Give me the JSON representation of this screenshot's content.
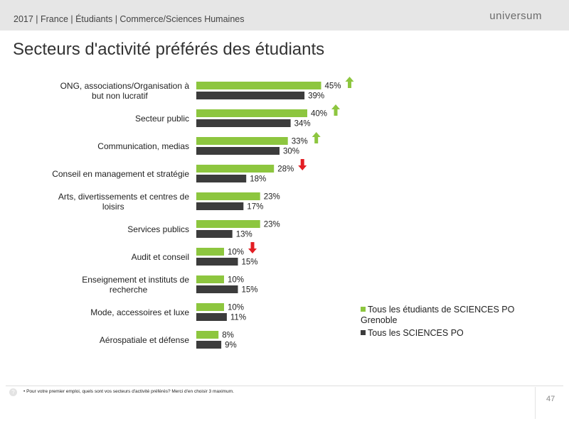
{
  "header": {
    "breadcrumb": "2017 | France | Étudiants | Commerce/Sciences Humaines",
    "brand": "universum"
  },
  "title": "Secteurs d'activité préférés des étudiants",
  "chart_data": {
    "type": "bar",
    "orientation": "horizontal",
    "title": "Secteurs d'activité préférés des étudiants",
    "categories": [
      "ONG, associations/Organisation à but non lucratif",
      "Secteur public",
      "Communication, medias",
      "Conseil en management et stratégie",
      "Arts, divertissements et centres de loisirs",
      "Services publics",
      "Audit et conseil",
      "Enseignement et instituts de recherche",
      "Mode, accessoires et luxe",
      "Aérospatiale et défense"
    ],
    "category_lines": [
      [
        "ONG, associations/Organisation à",
        "but non lucratif"
      ],
      [
        "Secteur public"
      ],
      [
        "Communication, medias"
      ],
      [
        "Conseil en management et stratégie"
      ],
      [
        "Arts, divertissements et centres de",
        "loisirs"
      ],
      [
        "Services publics"
      ],
      [
        "Audit et conseil"
      ],
      [
        "Enseignement et instituts de",
        "recherche"
      ],
      [
        "Mode, accessoires et luxe"
      ],
      [
        "Aérospatiale et défense"
      ]
    ],
    "series": [
      {
        "name": "Tous les étudiants de SCIENCES PO Grenoble",
        "color": "#8dc63f",
        "values": [
          45,
          40,
          33,
          28,
          23,
          23,
          10,
          10,
          10,
          8
        ]
      },
      {
        "name": "Tous les SCIENCES PO",
        "color": "#3c3c3c",
        "values": [
          39,
          34,
          30,
          18,
          17,
          13,
          15,
          15,
          11,
          9
        ]
      }
    ],
    "value_suffix": "%",
    "trend": [
      "up",
      "up",
      "up",
      "down",
      "none",
      "none",
      "down",
      "none",
      "none",
      "none"
    ],
    "trend_colors": {
      "up": "#8dc63f",
      "down": "#e31e24"
    },
    "legend_position": "right",
    "grid": false,
    "xlim": [
      0,
      100
    ]
  },
  "legend": {
    "item1": "Tous les étudiants de SCIENCES PO Grenoble",
    "item2": "Tous les SCIENCES PO"
  },
  "footer": {
    "note": "• Pour votre premier emploi, quels sont vos secteurs d'activité préférés? Merci d'en choisir 3 maximum.",
    "help_icon": "?",
    "page_number": "47"
  }
}
